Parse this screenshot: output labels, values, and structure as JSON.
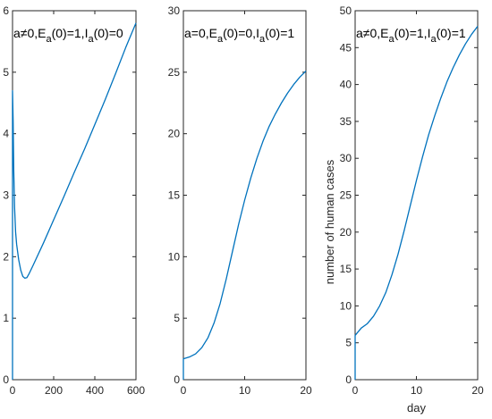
{
  "chart_data": [
    {
      "type": "line",
      "annotation": {
        "prefix": "a≠0,E",
        "sub1": "a",
        "mid": "(0)=1,I",
        "sub2": "a",
        "suffix": "(0)=0"
      },
      "xlabel": "",
      "ylabel": "",
      "xlim": [
        0,
        600
      ],
      "ylim": [
        0,
        6
      ],
      "xticks": [
        0,
        200,
        400,
        600
      ],
      "yticks": [
        0,
        1,
        2,
        3,
        4,
        5,
        6
      ],
      "series": [
        {
          "color": "#0072bd",
          "x": [
            0,
            0,
            3,
            6,
            10,
            15,
            20,
            30,
            40,
            50,
            60,
            70,
            80,
            100,
            150,
            200,
            250,
            300,
            350,
            400,
            450,
            500,
            550,
            600
          ],
          "y": [
            0,
            4.7,
            4.2,
            3.4,
            2.8,
            2.4,
            2.2,
            1.95,
            1.78,
            1.68,
            1.65,
            1.66,
            1.72,
            1.86,
            2.22,
            2.6,
            2.98,
            3.37,
            3.75,
            4.15,
            4.55,
            4.97,
            5.4,
            5.8
          ]
        }
      ]
    },
    {
      "type": "line",
      "annotation": {
        "prefix": "a=0,E",
        "sub1": "a",
        "mid": "(0)=0,I",
        "sub2": "a",
        "suffix": "(0)=1"
      },
      "xlabel": "",
      "ylabel": "",
      "xlim": [
        0,
        20
      ],
      "ylim": [
        0,
        30
      ],
      "xticks": [
        0,
        10,
        20
      ],
      "yticks": [
        0,
        5,
        10,
        15,
        20,
        25,
        30
      ],
      "series": [
        {
          "color": "#0072bd",
          "x": [
            0,
            0,
            1,
            2,
            3,
            4,
            5,
            6,
            7,
            8,
            9,
            10,
            11,
            12,
            13,
            14,
            15,
            16,
            17,
            18,
            19,
            20
          ],
          "y": [
            0,
            1.7,
            1.85,
            2.1,
            2.6,
            3.4,
            4.6,
            6.2,
            8.2,
            10.4,
            12.6,
            14.6,
            16.4,
            18.0,
            19.4,
            20.6,
            21.6,
            22.5,
            23.3,
            24.0,
            24.6,
            25.1
          ]
        }
      ]
    },
    {
      "type": "line",
      "annotation": {
        "prefix": "a≠0,E",
        "sub1": "a",
        "mid": "(0)=1,I",
        "sub2": "a",
        "suffix": "(0)=1"
      },
      "xlabel": "day",
      "ylabel": "number of human cases",
      "xlim": [
        0,
        20
      ],
      "ylim": [
        0,
        50
      ],
      "xticks": [
        0,
        10,
        20
      ],
      "yticks": [
        0,
        5,
        10,
        15,
        20,
        25,
        30,
        35,
        40,
        45,
        50
      ],
      "series": [
        {
          "color": "#0072bd",
          "x": [
            0,
            0,
            1,
            2,
            3,
            4,
            5,
            6,
            7,
            8,
            9,
            10,
            11,
            12,
            13,
            14,
            15,
            16,
            17,
            18,
            19,
            20
          ],
          "y": [
            0,
            6.0,
            7.0,
            7.6,
            8.6,
            10.0,
            11.8,
            14.2,
            17.0,
            20.2,
            23.6,
            27.0,
            30.2,
            33.2,
            35.8,
            38.2,
            40.4,
            42.3,
            44.0,
            45.5,
            46.8,
            47.9
          ]
        }
      ]
    }
  ]
}
